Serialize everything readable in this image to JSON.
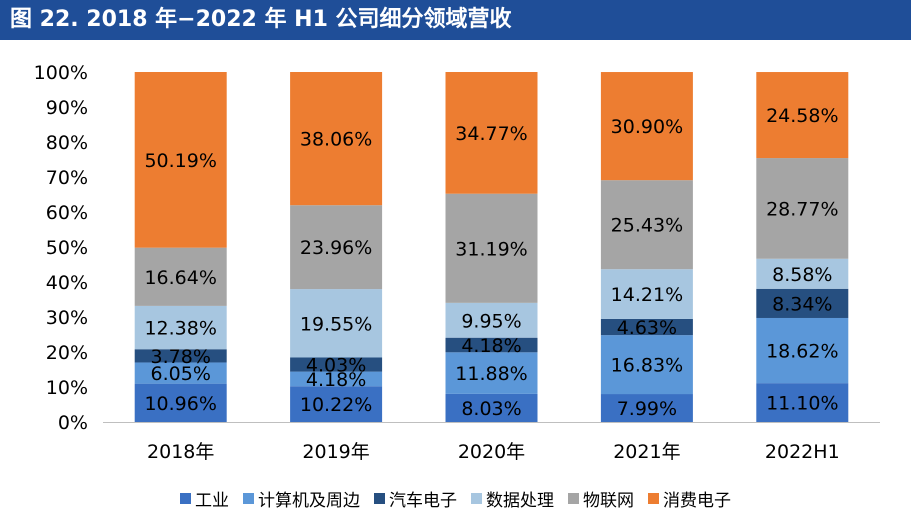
{
  "title": "图 22. 2018 年−2022 年 H1 公司细分领域营收",
  "chart_data": {
    "type": "bar",
    "stacked": true,
    "categories": [
      "2018年",
      "2019年",
      "2020年",
      "2021年",
      "2022H1"
    ],
    "ylim": [
      0,
      100
    ],
    "yticks": [
      "0%",
      "10%",
      "20%",
      "30%",
      "40%",
      "50%",
      "60%",
      "70%",
      "80%",
      "90%",
      "100%"
    ],
    "legend_position": "bottom",
    "series": [
      {
        "name": "工业",
        "color": "#3a70c3",
        "values": [
          10.96,
          10.22,
          8.03,
          7.99,
          11.1
        ],
        "labels": [
          "10.96%",
          "10.22%",
          "8.03%",
          "7.99%",
          "11.10%"
        ]
      },
      {
        "name": "计算机及周边",
        "color": "#5b97d8",
        "values": [
          6.05,
          4.18,
          11.88,
          16.83,
          18.62
        ],
        "labels": [
          "6.05%",
          "4.18%",
          "11.88%",
          "16.83%",
          "18.62%"
        ]
      },
      {
        "name": "汽车电子",
        "color": "#264f80",
        "values": [
          3.78,
          4.03,
          4.18,
          4.63,
          8.34
        ],
        "labels": [
          "3.78%",
          "4.03%",
          "4.18%",
          "4.63%",
          "8.34%"
        ]
      },
      {
        "name": "数据处理",
        "color": "#a7c6e0",
        "values": [
          12.38,
          19.55,
          9.95,
          14.21,
          8.58
        ],
        "labels": [
          "12.38%",
          "19.55%",
          "9.95%",
          "14.21%",
          "8.58%"
        ]
      },
      {
        "name": "物联网",
        "color": "#a5a5a5",
        "values": [
          16.64,
          23.96,
          31.19,
          25.43,
          28.77
        ],
        "labels": [
          "16.64%",
          "23.96%",
          "31.19%",
          "25.43%",
          "28.77%"
        ]
      },
      {
        "name": "消费电子",
        "color": "#ed7d31",
        "values": [
          50.19,
          38.06,
          34.77,
          30.9,
          24.58
        ],
        "labels": [
          "50.19%",
          "38.06%",
          "34.77%",
          "30.90%",
          "24.58%"
        ]
      }
    ]
  }
}
